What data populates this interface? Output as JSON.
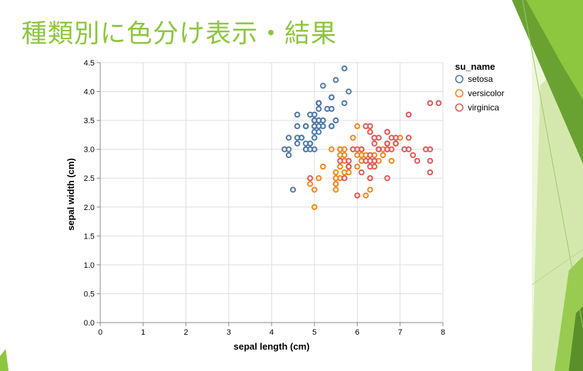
{
  "slide": {
    "title": "種類別に色分け表示・結果"
  },
  "colors": {
    "title": "#8dc63f",
    "setosa": "#4c78a8",
    "versicolor": "#f58518",
    "virginica": "#e45756"
  },
  "chart_data": {
    "type": "scatter",
    "xlabel": "sepal length (cm)",
    "ylabel": "sepal width (cm)",
    "xlim": [
      0,
      8
    ],
    "ylim": [
      0,
      4.5
    ],
    "xticks": [
      0,
      1,
      2,
      3,
      4,
      5,
      6,
      7,
      8
    ],
    "yticks": [
      0.0,
      0.5,
      1.0,
      1.5,
      2.0,
      2.5,
      3.0,
      3.5,
      4.0,
      4.5
    ],
    "grid": true,
    "legend": {
      "title": "su_name",
      "placement": "right"
    },
    "series": [
      {
        "name": "setosa",
        "color": "#4c78a8",
        "points": [
          [
            5.1,
            3.5
          ],
          [
            4.9,
            3.0
          ],
          [
            4.7,
            3.2
          ],
          [
            4.6,
            3.1
          ],
          [
            5.0,
            3.6
          ],
          [
            5.4,
            3.9
          ],
          [
            4.6,
            3.4
          ],
          [
            5.0,
            3.4
          ],
          [
            4.4,
            2.9
          ],
          [
            4.9,
            3.1
          ],
          [
            5.4,
            3.7
          ],
          [
            4.8,
            3.4
          ],
          [
            4.8,
            3.0
          ],
          [
            4.3,
            3.0
          ],
          [
            5.8,
            4.0
          ],
          [
            5.7,
            4.4
          ],
          [
            5.4,
            3.9
          ],
          [
            5.1,
            3.5
          ],
          [
            5.7,
            3.8
          ],
          [
            5.1,
            3.8
          ],
          [
            5.4,
            3.4
          ],
          [
            5.1,
            3.7
          ],
          [
            4.6,
            3.6
          ],
          [
            5.1,
            3.3
          ],
          [
            4.8,
            3.4
          ],
          [
            5.0,
            3.0
          ],
          [
            5.0,
            3.4
          ],
          [
            5.2,
            3.5
          ],
          [
            5.2,
            3.4
          ],
          [
            4.7,
            3.2
          ],
          [
            4.8,
            3.1
          ],
          [
            5.4,
            3.4
          ],
          [
            5.2,
            4.1
          ],
          [
            5.5,
            4.2
          ],
          [
            4.9,
            3.1
          ],
          [
            5.0,
            3.2
          ],
          [
            5.5,
            3.5
          ],
          [
            4.9,
            3.6
          ],
          [
            4.4,
            3.0
          ],
          [
            5.1,
            3.4
          ],
          [
            5.0,
            3.5
          ],
          [
            4.5,
            2.3
          ],
          [
            4.4,
            3.2
          ],
          [
            5.0,
            3.5
          ],
          [
            5.1,
            3.8
          ],
          [
            4.8,
            3.0
          ],
          [
            5.1,
            3.8
          ],
          [
            4.6,
            3.2
          ],
          [
            5.3,
            3.7
          ],
          [
            5.0,
            3.3
          ]
        ]
      },
      {
        "name": "versicolor",
        "color": "#f58518",
        "points": [
          [
            7.0,
            3.2
          ],
          [
            6.4,
            3.2
          ],
          [
            6.9,
            3.1
          ],
          [
            5.5,
            2.3
          ],
          [
            6.5,
            2.8
          ],
          [
            5.7,
            2.8
          ],
          [
            6.3,
            3.3
          ],
          [
            4.9,
            2.4
          ],
          [
            6.6,
            2.9
          ],
          [
            5.2,
            2.7
          ],
          [
            5.0,
            2.0
          ],
          [
            5.9,
            3.0
          ],
          [
            6.0,
            2.2
          ],
          [
            6.1,
            2.9
          ],
          [
            5.6,
            2.9
          ],
          [
            6.7,
            3.1
          ],
          [
            5.6,
            3.0
          ],
          [
            5.8,
            2.7
          ],
          [
            6.2,
            2.2
          ],
          [
            5.6,
            2.5
          ],
          [
            5.9,
            3.2
          ],
          [
            6.1,
            2.8
          ],
          [
            6.3,
            2.5
          ],
          [
            6.1,
            2.8
          ],
          [
            6.4,
            2.9
          ],
          [
            6.6,
            3.0
          ],
          [
            6.8,
            2.8
          ],
          [
            6.7,
            3.0
          ],
          [
            6.0,
            2.9
          ],
          [
            5.7,
            2.6
          ],
          [
            5.5,
            2.4
          ],
          [
            5.5,
            2.4
          ],
          [
            5.8,
            2.7
          ],
          [
            6.0,
            2.7
          ],
          [
            5.4,
            3.0
          ],
          [
            6.0,
            3.4
          ],
          [
            6.7,
            3.1
          ],
          [
            6.3,
            2.3
          ],
          [
            5.6,
            3.0
          ],
          [
            5.5,
            2.5
          ],
          [
            5.5,
            2.6
          ],
          [
            6.1,
            3.0
          ],
          [
            5.8,
            2.6
          ],
          [
            5.0,
            2.3
          ],
          [
            5.6,
            2.7
          ],
          [
            5.7,
            3.0
          ],
          [
            5.7,
            2.9
          ],
          [
            6.2,
            2.9
          ],
          [
            5.1,
            2.5
          ],
          [
            5.7,
            2.8
          ]
        ]
      },
      {
        "name": "virginica",
        "color": "#e45756",
        "points": [
          [
            6.3,
            3.3
          ],
          [
            5.8,
            2.7
          ],
          [
            7.1,
            3.0
          ],
          [
            6.3,
            2.9
          ],
          [
            6.5,
            3.0
          ],
          [
            7.6,
            3.0
          ],
          [
            4.9,
            2.5
          ],
          [
            7.3,
            2.9
          ],
          [
            6.7,
            2.5
          ],
          [
            7.2,
            3.6
          ],
          [
            6.5,
            3.2
          ],
          [
            6.4,
            2.7
          ],
          [
            6.8,
            3.0
          ],
          [
            5.7,
            2.5
          ],
          [
            5.8,
            2.8
          ],
          [
            6.4,
            3.2
          ],
          [
            6.5,
            3.0
          ],
          [
            7.7,
            3.8
          ],
          [
            7.7,
            2.6
          ],
          [
            6.0,
            2.2
          ],
          [
            6.9,
            3.2
          ],
          [
            5.6,
            2.8
          ],
          [
            7.7,
            2.8
          ],
          [
            6.3,
            2.7
          ],
          [
            6.7,
            3.3
          ],
          [
            7.2,
            3.2
          ],
          [
            6.2,
            2.8
          ],
          [
            6.1,
            3.0
          ],
          [
            6.4,
            2.8
          ],
          [
            7.2,
            3.0
          ],
          [
            7.4,
            2.8
          ],
          [
            7.9,
            3.8
          ],
          [
            6.4,
            2.8
          ],
          [
            6.3,
            2.8
          ],
          [
            6.1,
            2.6
          ],
          [
            7.7,
            3.0
          ],
          [
            6.3,
            3.4
          ],
          [
            6.4,
            3.1
          ],
          [
            6.0,
            3.0
          ],
          [
            6.9,
            3.1
          ],
          [
            6.7,
            3.1
          ],
          [
            6.9,
            3.1
          ],
          [
            5.8,
            2.7
          ],
          [
            6.8,
            3.2
          ],
          [
            6.7,
            3.3
          ],
          [
            6.7,
            3.0
          ],
          [
            6.3,
            2.5
          ],
          [
            6.5,
            3.0
          ],
          [
            6.2,
            3.4
          ],
          [
            5.9,
            3.0
          ]
        ]
      }
    ]
  }
}
